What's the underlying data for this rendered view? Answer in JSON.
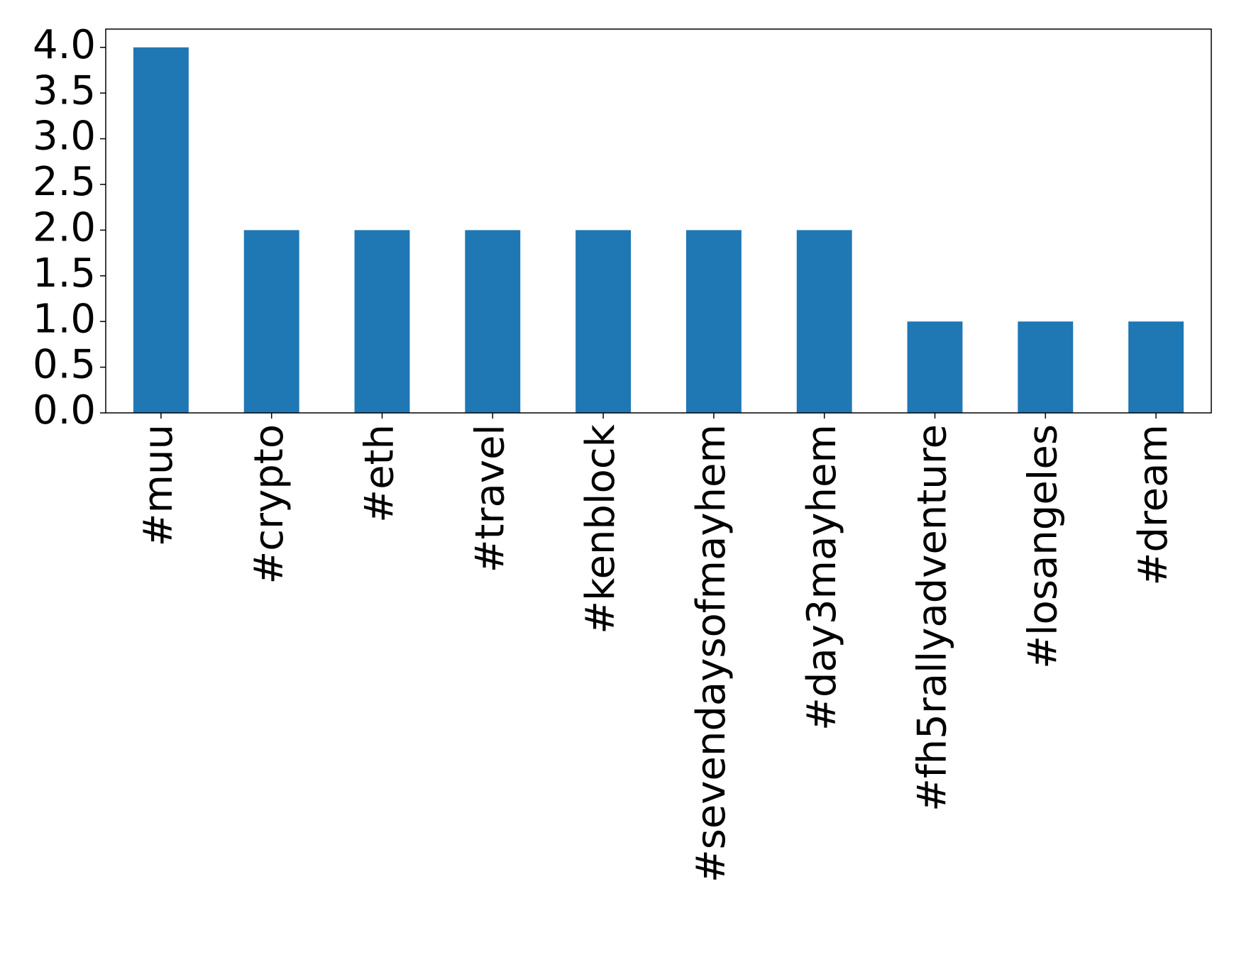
{
  "chart_data": {
    "type": "bar",
    "categories": [
      "#muu",
      "#crypto",
      "#eth",
      "#travel",
      "#kenblock",
      "#sevendaysofmayhem",
      "#day3mayhem",
      "#fh5rallyadventure",
      "#losangeles",
      "#dream"
    ],
    "values": [
      4,
      2,
      2,
      2,
      2,
      2,
      2,
      1,
      1,
      1
    ],
    "color": "#1f77b4",
    "ylim": [
      0,
      4.2
    ],
    "yticks": [
      {
        "value": 0,
        "label": "0.0"
      },
      {
        "value": 0.5,
        "label": "0.5"
      },
      {
        "value": 1,
        "label": "1.0"
      },
      {
        "value": 1.5,
        "label": "1.5"
      },
      {
        "value": 2,
        "label": "2.0"
      },
      {
        "value": 2.5,
        "label": "2.5"
      },
      {
        "value": 3,
        "label": "3.0"
      },
      {
        "value": 3.5,
        "label": "3.5"
      },
      {
        "value": 4,
        "label": "4.0"
      }
    ],
    "grid": false
  }
}
